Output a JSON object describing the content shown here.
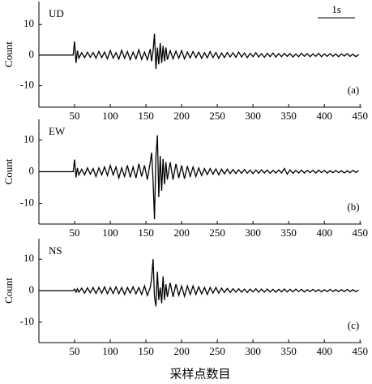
{
  "chart_data": [
    {
      "type": "line",
      "label": "UD",
      "panel_label": "(a)",
      "scale_label": "1s",
      "ylabel": "Count",
      "color": "#000000",
      "xlim": [
        0,
        452
      ],
      "xticks": [
        50,
        100,
        150,
        200,
        250,
        300,
        350,
        400,
        450
      ],
      "ylim": [
        -17,
        17.5
      ],
      "yticks": [
        10,
        0,
        -10
      ],
      "x": [
        0,
        48,
        50,
        52,
        54,
        56,
        60,
        64,
        68,
        72,
        76,
        80,
        84,
        88,
        92,
        96,
        100,
        104,
        108,
        112,
        116,
        120,
        124,
        128,
        132,
        136,
        140,
        144,
        148,
        152,
        156,
        158,
        160,
        162,
        164,
        166,
        168,
        170,
        172,
        174,
        176,
        178,
        180,
        184,
        188,
        192,
        196,
        200,
        204,
        208,
        212,
        216,
        220,
        224,
        228,
        232,
        236,
        240,
        244,
        248,
        252,
        256,
        260,
        264,
        268,
        272,
        276,
        280,
        284,
        288,
        292,
        296,
        300,
        304,
        308,
        312,
        316,
        320,
        324,
        328,
        332,
        336,
        340,
        344,
        348,
        352,
        356,
        360,
        364,
        368,
        372,
        376,
        380,
        384,
        388,
        392,
        396,
        400,
        404,
        408,
        412,
        416,
        420,
        424,
        428,
        432,
        436,
        440,
        444,
        448
      ],
      "values": [
        0,
        0,
        4.5,
        -2.5,
        1.5,
        -1,
        0.8,
        -0.8,
        1,
        -0.7,
        0.9,
        -1,
        1.2,
        -0.8,
        1,
        -1.2,
        1.5,
        -1,
        0.8,
        -1.3,
        1.6,
        -1,
        1.2,
        -1.5,
        1,
        -1.2,
        1.8,
        -1.4,
        1,
        -1.5,
        2,
        -2,
        1.5,
        7,
        -4.5,
        2.5,
        -3,
        4,
        -2.5,
        3,
        -2,
        2.5,
        -1.5,
        1.5,
        -1.2,
        1.3,
        -1,
        1.5,
        -1.2,
        1,
        -0.9,
        1.2,
        -0.8,
        1,
        -1,
        0.8,
        -0.9,
        1.2,
        -0.8,
        0.9,
        -1,
        0.7,
        -0.8,
        0.9,
        -0.6,
        0.8,
        -0.7,
        1,
        -0.6,
        0.7,
        -0.8,
        0.6,
        -0.5,
        0.8,
        -0.6,
        0.5,
        -0.7,
        0.6,
        -0.5,
        0.7,
        -0.6,
        0.5,
        -0.5,
        0.6,
        -0.4,
        0.5,
        -0.6,
        0.4,
        -0.5,
        0.6,
        -0.4,
        0.5,
        -0.5,
        0.4,
        -0.4,
        0.6,
        -0.5,
        0.4,
        -0.4,
        0.5,
        -0.4,
        0.4,
        -0.5,
        0.4,
        -0.3,
        0.5,
        -0.4,
        0.3,
        -0.5,
        0.2
      ]
    },
    {
      "type": "line",
      "label": "EW",
      "panel_label": "(b)",
      "ylabel": "Count",
      "color": "#000000",
      "xlim": [
        0,
        452
      ],
      "xticks": [
        50,
        100,
        150,
        200,
        250,
        300,
        350,
        400,
        450
      ],
      "ylim": [
        -16.5,
        16.5
      ],
      "yticks": [
        10,
        0,
        -10
      ],
      "x": [
        0,
        48,
        50,
        52,
        54,
        56,
        60,
        64,
        68,
        72,
        76,
        80,
        84,
        88,
        92,
        96,
        100,
        104,
        108,
        112,
        116,
        120,
        124,
        128,
        132,
        136,
        140,
        144,
        148,
        152,
        156,
        158,
        160,
        162,
        164,
        166,
        168,
        170,
        172,
        174,
        176,
        178,
        180,
        184,
        188,
        192,
        196,
        200,
        204,
        208,
        212,
        216,
        220,
        224,
        228,
        232,
        236,
        240,
        244,
        248,
        252,
        256,
        260,
        264,
        268,
        272,
        276,
        280,
        284,
        288,
        292,
        296,
        300,
        304,
        308,
        312,
        316,
        320,
        324,
        328,
        332,
        336,
        340,
        344,
        348,
        352,
        356,
        360,
        364,
        368,
        372,
        376,
        380,
        384,
        388,
        392,
        396,
        400,
        404,
        408,
        412,
        416,
        420,
        424,
        428,
        432,
        436,
        440,
        444,
        448
      ],
      "values": [
        0,
        0,
        3.8,
        -1.8,
        1.2,
        -1,
        0.8,
        -1,
        1.2,
        -0.8,
        1,
        -1.5,
        1.2,
        -1,
        1.5,
        -1.2,
        2,
        -1,
        1.5,
        -2,
        1.2,
        -1.5,
        2,
        -1.8,
        1.5,
        -2,
        2.5,
        -1.5,
        2,
        -2.5,
        3,
        6,
        -3,
        -15,
        5,
        11.5,
        -8,
        5,
        -6,
        4,
        -4,
        3,
        -2.5,
        3,
        -2.5,
        2.5,
        -2,
        2,
        -2.2,
        1.8,
        -1.5,
        1.5,
        -1.5,
        1.2,
        -1.2,
        1,
        -0.9,
        1,
        -0.8,
        0.9,
        -1,
        0.8,
        -0.7,
        0.8,
        -0.6,
        0.7,
        -0.6,
        0.6,
        -0.5,
        0.7,
        -0.5,
        0.5,
        -0.6,
        0.5,
        -0.5,
        0.6,
        -0.4,
        0.5,
        -0.5,
        0.4,
        -0.4,
        0.5,
        -0.4,
        1,
        -0.8,
        0.6,
        -0.5,
        0.4,
        -0.4,
        0.5,
        -0.4,
        0.4,
        -0.3,
        0.4,
        -0.4,
        0.5,
        -0.3,
        0.4,
        -0.4,
        0.3,
        -0.3,
        0.4,
        -0.3,
        0.3,
        -0.4,
        0.3,
        -0.3,
        0.4,
        -0.2,
        0.3
      ]
    },
    {
      "type": "line",
      "label": "NS",
      "panel_label": "(c)",
      "ylabel": "Count",
      "xlabel": "采样点数目",
      "color": "#000000",
      "xlim": [
        0,
        452
      ],
      "xticks": [
        50,
        100,
        150,
        200,
        250,
        300,
        350,
        400,
        450
      ],
      "ylim": [
        -16.5,
        16.5
      ],
      "yticks": [
        10,
        0,
        -10
      ],
      "x": [
        0,
        48,
        50,
        52,
        54,
        56,
        60,
        64,
        68,
        72,
        76,
        80,
        84,
        88,
        92,
        96,
        100,
        104,
        108,
        112,
        116,
        120,
        124,
        128,
        132,
        136,
        140,
        144,
        148,
        152,
        156,
        158,
        160,
        162,
        164,
        166,
        168,
        170,
        172,
        174,
        176,
        178,
        180,
        184,
        188,
        192,
        196,
        200,
        204,
        208,
        212,
        216,
        220,
        224,
        228,
        232,
        236,
        240,
        244,
        248,
        252,
        256,
        260,
        264,
        268,
        272,
        276,
        280,
        284,
        288,
        292,
        296,
        300,
        304,
        308,
        312,
        316,
        320,
        324,
        328,
        332,
        336,
        340,
        344,
        348,
        352,
        356,
        360,
        364,
        368,
        372,
        376,
        380,
        384,
        388,
        392,
        396,
        400,
        404,
        408,
        412,
        416,
        420,
        424,
        428,
        432,
        436,
        440,
        444,
        448
      ],
      "values": [
        0,
        0,
        0.5,
        -0.5,
        0.6,
        -0.5,
        0.8,
        -0.8,
        0.9,
        -0.7,
        1,
        -0.9,
        1,
        -0.8,
        1.2,
        -1,
        1,
        -0.9,
        1.2,
        -1,
        1,
        -1.2,
        1,
        -0.8,
        1.2,
        -1,
        1,
        -1.2,
        1.5,
        -1.5,
        1,
        4,
        10,
        -2,
        -5,
        6,
        -3,
        1,
        -4,
        4.5,
        -3,
        2,
        -2,
        2.5,
        -2,
        2,
        -1.5,
        1.5,
        -1.8,
        1.5,
        -1.2,
        1.5,
        -1.2,
        1.2,
        -1,
        1,
        -1.2,
        1,
        -0.8,
        1,
        -0.8,
        0.8,
        -0.6,
        0.7,
        -0.6,
        0.6,
        -0.5,
        0.6,
        -0.5,
        0.5,
        -0.6,
        0.5,
        -0.4,
        0.6,
        -0.5,
        0.5,
        -0.5,
        0.5,
        -0.4,
        0.4,
        -0.5,
        0.4,
        -0.4,
        0.5,
        -0.4,
        0.4,
        -0.4,
        0.5,
        -0.3,
        0.4,
        -0.4,
        0.3,
        -0.3,
        0.4,
        -0.3,
        0.3,
        -0.4,
        0.3,
        -0.3,
        0.4,
        -0.3,
        0.3,
        -0.3,
        0.3,
        -0.3,
        0.4,
        -0.3,
        0.3,
        -0.3,
        0.2
      ]
    }
  ]
}
